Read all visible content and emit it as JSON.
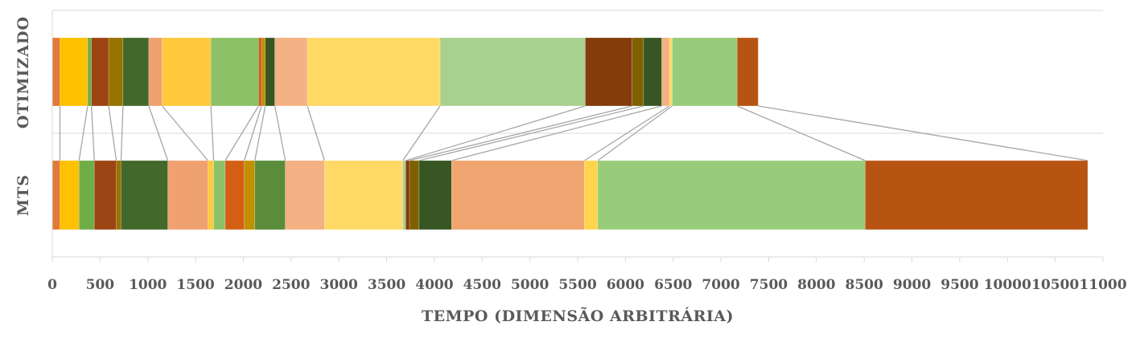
{
  "chart_data": {
    "type": "bar",
    "orientation": "horizontal",
    "stacked": true,
    "categories": [
      "OTIMIZADO",
      "MTS"
    ],
    "xlabel": "TEMPO (DIMENSÃO ARBITRÁRIA)",
    "ylabel": "",
    "xlim": [
      0,
      11000
    ],
    "xticks": [
      0,
      500,
      1000,
      1500,
      2000,
      2500,
      3000,
      3500,
      4000,
      4500,
      5000,
      5500,
      6000,
      6500,
      7000,
      7500,
      8000,
      8500,
      9000,
      9500,
      10000,
      10500,
      11000
    ],
    "xtick_labels": [
      "0",
      "500",
      "1000",
      "1500",
      "2000",
      "2500",
      "3000",
      "3500",
      "4000",
      "4500",
      "5000",
      "5500",
      "6000",
      "6500",
      "7000",
      "7500",
      "8000",
      "8500",
      "9000",
      "9500",
      "10000",
      "10500",
      "11000"
    ],
    "grid": true,
    "legend": "none",
    "segments": {
      "OTIMIZADO": [
        {
          "value": 80,
          "color": "#e07a35"
        },
        {
          "value": 290,
          "color": "#ffc000"
        },
        {
          "value": 40,
          "color": "#70ad47"
        },
        {
          "value": 180,
          "color": "#9c4413"
        },
        {
          "value": 150,
          "color": "#997300"
        },
        {
          "value": 270,
          "color": "#43682b"
        },
        {
          "value": 140,
          "color": "#f0a170"
        },
        {
          "value": 510,
          "color": "#ffc93d"
        },
        {
          "value": 500,
          "color": "#8cc168"
        },
        {
          "value": 30,
          "color": "#c55a11"
        },
        {
          "value": 40,
          "color": "#bf9000"
        },
        {
          "value": 100,
          "color": "#385723"
        },
        {
          "value": 340,
          "color": "#f4b183"
        },
        {
          "value": 1390,
          "color": "#ffd966"
        },
        {
          "value": 1520,
          "color": "#a9d18e"
        },
        {
          "value": 490,
          "color": "#843c0c"
        },
        {
          "value": 120,
          "color": "#7f6000"
        },
        {
          "value": 190,
          "color": "#375623"
        },
        {
          "value": 80,
          "color": "#f4b183"
        },
        {
          "value": 30,
          "color": "#ffd966"
        },
        {
          "value": 680,
          "color": "#99cc7a"
        },
        {
          "value": 220,
          "color": "#b85412"
        }
      ],
      "MTS": [
        {
          "value": 80,
          "color": "#e07a35"
        },
        {
          "value": 200,
          "color": "#ffc000"
        },
        {
          "value": 160,
          "color": "#70ad47"
        },
        {
          "value": 230,
          "color": "#9c4413"
        },
        {
          "value": 50,
          "color": "#997300"
        },
        {
          "value": 490,
          "color": "#43682b"
        },
        {
          "value": 420,
          "color": "#f0a170"
        },
        {
          "value": 60,
          "color": "#ffc93d"
        },
        {
          "value": 120,
          "color": "#8cc168"
        },
        {
          "value": 200,
          "color": "#d45f14"
        },
        {
          "value": 110,
          "color": "#bf9000"
        },
        {
          "value": 320,
          "color": "#5b8c3a"
        },
        {
          "value": 410,
          "color": "#f4b183"
        },
        {
          "value": 820,
          "color": "#ffd966"
        },
        {
          "value": 30,
          "color": "#a9d18e"
        },
        {
          "value": 40,
          "color": "#843c0c"
        },
        {
          "value": 100,
          "color": "#7f6000"
        },
        {
          "value": 340,
          "color": "#375623"
        },
        {
          "value": 1390,
          "color": "#f0a570"
        },
        {
          "value": 140,
          "color": "#ffd44d"
        },
        {
          "value": 2800,
          "color": "#99cc7a"
        },
        {
          "value": 2330,
          "color": "#b85412"
        }
      ]
    },
    "connector_color": "#a6a6a6",
    "axis_color": "#d9d9d9"
  }
}
